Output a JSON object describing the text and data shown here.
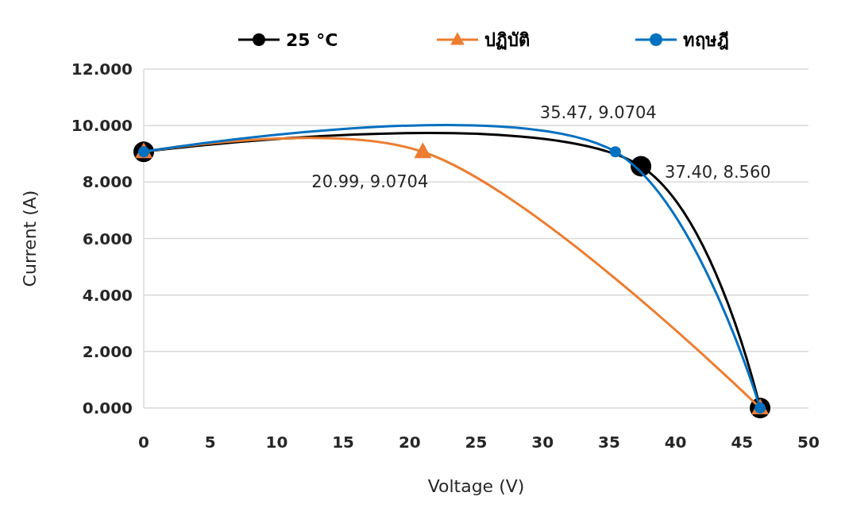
{
  "chart_data": {
    "type": "line",
    "xlabel": "Voltage (V)",
    "ylabel": "Current (A)",
    "xlim": [
      0,
      50
    ],
    "xticks": [
      0,
      5,
      10,
      15,
      20,
      25,
      30,
      35,
      40,
      45,
      50
    ],
    "ylim": [
      0,
      12
    ],
    "yticks": [
      {
        "value": 0,
        "label": "0.000"
      },
      {
        "value": 2,
        "label": "2.000"
      },
      {
        "value": 4,
        "label": "4.000"
      },
      {
        "value": 6,
        "label": "6.000"
      },
      {
        "value": 8,
        "label": "8.000"
      },
      {
        "value": 10,
        "label": "10.000"
      },
      {
        "value": 12,
        "label": "12.000"
      }
    ],
    "grid": "y",
    "legend": "top",
    "marker": "circle",
    "series": [
      {
        "name": "25 °C",
        "color": "#000000",
        "x": [
          0,
          37.4,
          46.36
        ],
        "values": [
          9.07,
          8.56,
          0
        ]
      },
      {
        "name": "ปฏิบัติ",
        "color": "#ed7d31",
        "type": "line",
        "marker": "triangle",
        "x": [
          0,
          20.99,
          46.36
        ],
        "values": [
          9.07,
          9.0704,
          0
        ]
      },
      {
        "name": "ทฤษฎี",
        "color": "#0070c0",
        "x": [
          0,
          35.47,
          46.36
        ],
        "values": [
          9.07,
          9.0704,
          0
        ]
      }
    ],
    "annotations": [
      {
        "text": "20.99, 9.0704",
        "x": 20.99,
        "y": 9.0704
      },
      {
        "text": "35.47, 9.0704",
        "x": 35.47,
        "y": 9.0704
      },
      {
        "text": "37.40, 8.560",
        "x": 37.4,
        "y": 8.56
      }
    ]
  }
}
